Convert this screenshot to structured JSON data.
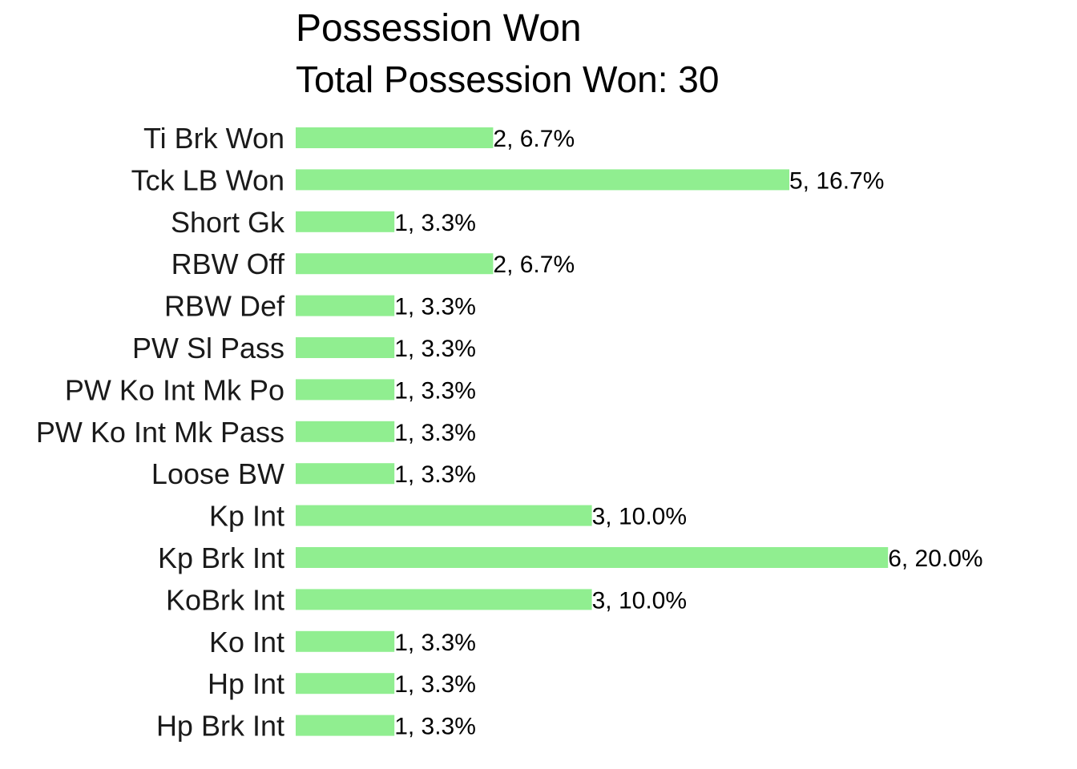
{
  "chart_data": {
    "type": "bar",
    "orientation": "horizontal",
    "title": "Possession Won",
    "subtitle": "Total Possession Won: 30",
    "categories": [
      "Ti Brk Won",
      "Tck LB Won",
      "Short Gk",
      "RBW Off",
      "RBW Def",
      "PW Sl Pass",
      "PW Ko Int Mk Po",
      "PW Ko Int Mk Pass",
      "Loose BW",
      "Kp Int",
      "Kp Brk Int",
      "KoBrk Int",
      "Ko Int",
      "Hp Int",
      "Hp Brk Int"
    ],
    "values": [
      2,
      5,
      1,
      2,
      1,
      1,
      1,
      1,
      1,
      3,
      6,
      3,
      1,
      1,
      1
    ],
    "data_labels": [
      "2, 6.7%",
      "5, 16.7%",
      "1, 3.3%",
      "2, 6.7%",
      "1, 3.3%",
      "1, 3.3%",
      "1, 3.3%",
      "1, 3.3%",
      "1, 3.3%",
      "3, 10.0%",
      "6, 20.0%",
      "3, 10.0%",
      "1, 3.3%",
      "1, 3.3%",
      "1, 3.3%"
    ],
    "xlim": [
      0,
      6
    ],
    "grid": false,
    "legend": false,
    "bar_color": "#90EE90"
  }
}
